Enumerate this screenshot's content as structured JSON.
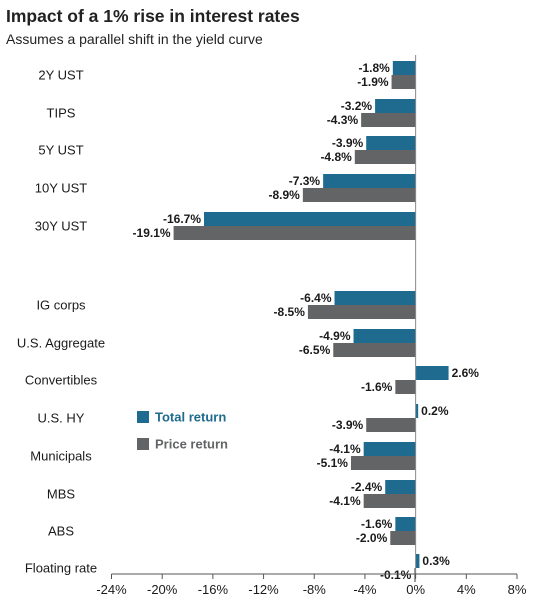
{
  "chart_data": {
    "type": "bar",
    "orientation": "horizontal",
    "title": "Impact of a 1% rise in interest rates",
    "subtitle": "Assumes a parallel shift in the yield curve",
    "categories": [
      "2Y UST",
      "TIPS",
      "5Y UST",
      "10Y UST",
      "30Y UST",
      "IG corps",
      "U.S. Aggregate",
      "Convertibles",
      "U.S. HY",
      "Municipals",
      "MBS",
      "ABS",
      "Floating rate"
    ],
    "series": [
      {
        "name": "Total return",
        "color": "#1f6b8f",
        "values": [
          -1.8,
          -3.2,
          -3.9,
          -7.3,
          -16.7,
          -6.4,
          -4.9,
          2.6,
          0.2,
          -4.1,
          -2.4,
          -1.6,
          0.3
        ],
        "labels": [
          "-1.8%",
          "-3.2%",
          "-3.9%",
          "-7.3%",
          "-16.7%",
          "-6.4%",
          "-4.9%",
          "2.6%",
          "0.2%",
          "-4.1%",
          "-2.4%",
          "-1.6%",
          "0.3%"
        ]
      },
      {
        "name": "Price return",
        "color": "#636466",
        "values": [
          -1.9,
          -4.3,
          -4.8,
          -8.9,
          -19.1,
          -8.5,
          -6.5,
          -1.6,
          -3.9,
          -5.1,
          -4.1,
          -2.0,
          -0.1
        ],
        "labels": [
          "-1.9%",
          "-4.3%",
          "-4.8%",
          "-8.9%",
          "-19.1%",
          "-8.5%",
          "-6.5%",
          "-1.6%",
          "-3.9%",
          "-5.1%",
          "-4.1%",
          "-2.0%",
          "-0.1%"
        ]
      }
    ],
    "xlim": [
      -24,
      8
    ],
    "xticks": [
      -24,
      -20,
      -16,
      -12,
      -8,
      -4,
      0,
      4,
      8
    ],
    "xtick_labels": [
      "-24%",
      "-20%",
      "-16%",
      "-12%",
      "-8%",
      "-4%",
      "0%",
      "4%",
      "8%"
    ],
    "grid": false,
    "legend_position": "center-left"
  }
}
